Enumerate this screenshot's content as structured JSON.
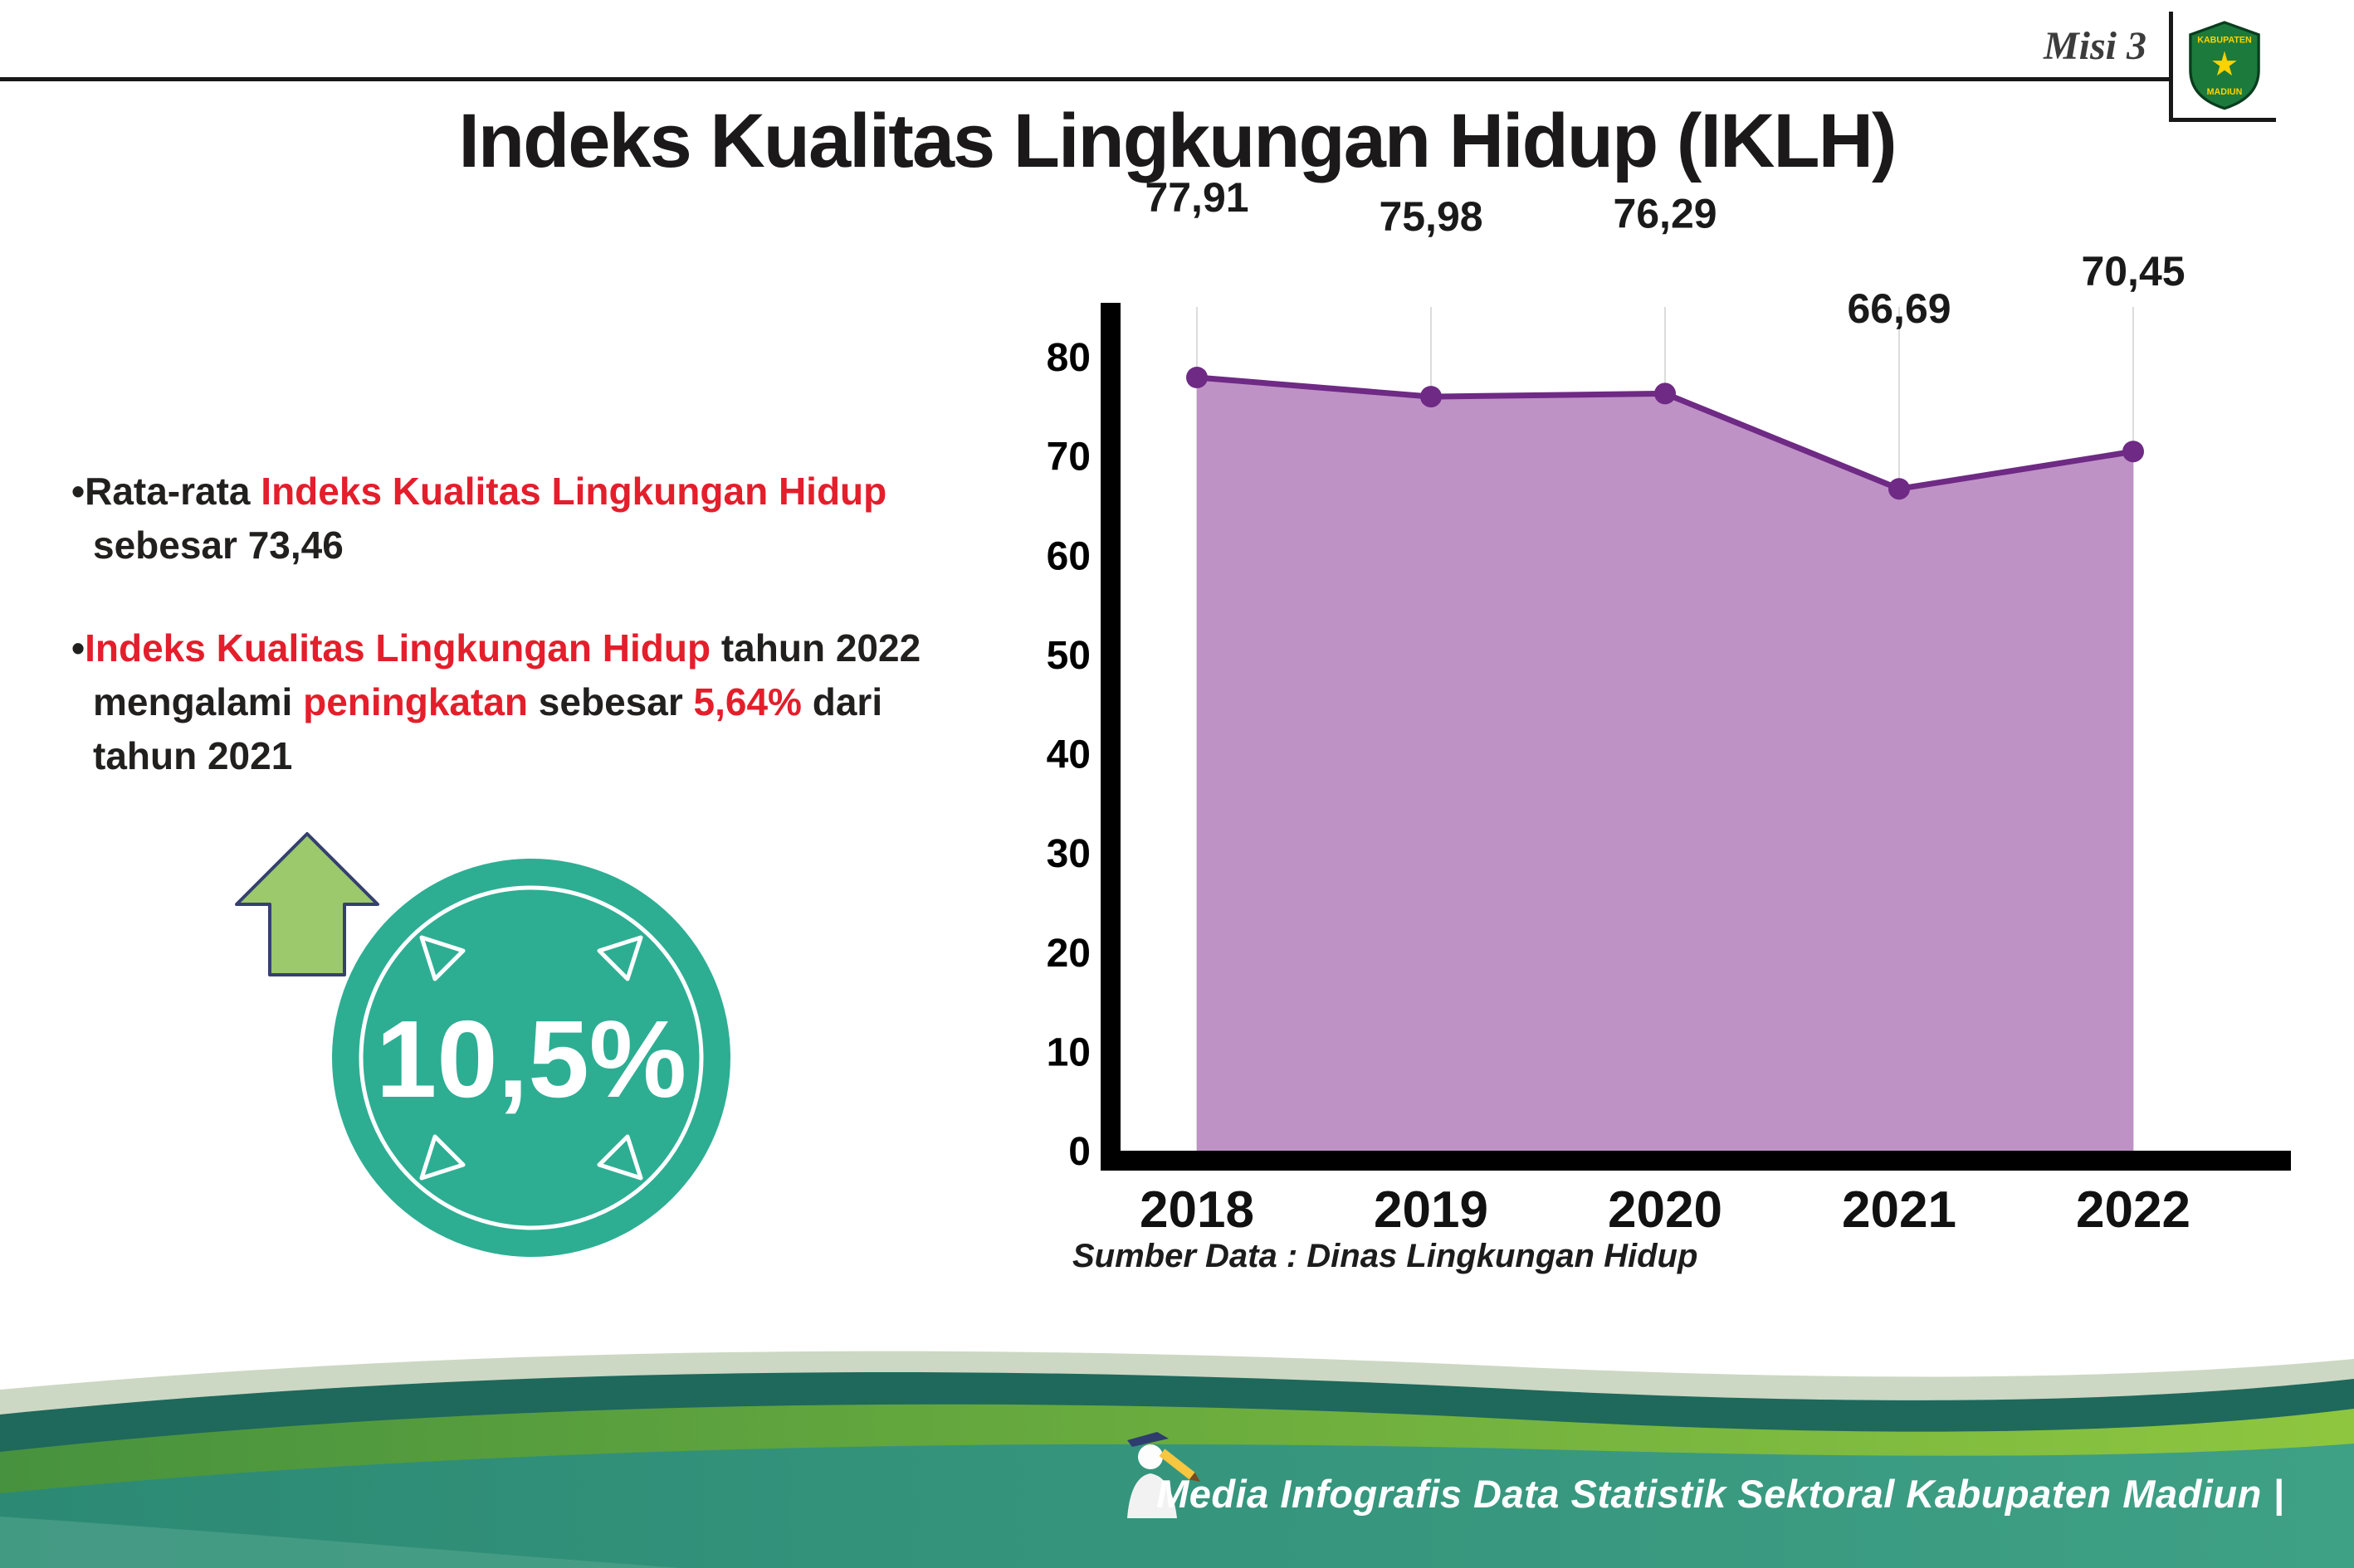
{
  "header": {
    "misi_label": "Misi 3",
    "title": "Indeks Kualitas Lingkungan Hidup (IKLH)"
  },
  "logo": {
    "top_text": "KABUPATEN",
    "bottom_text": "MADIUN"
  },
  "bullets": [
    {
      "segments": [
        {
          "t": "•Rata-rata ",
          "c": "dark"
        },
        {
          "t": "Indeks Kualitas Lingkungan Hidup",
          "c": "red"
        },
        {
          "t": " sebesar 73,46",
          "c": "dark"
        }
      ]
    },
    {
      "segments": [
        {
          "t": "•",
          "c": "dark"
        },
        {
          "t": "Indeks Kualitas Lingkungan Hidup",
          "c": "red"
        },
        {
          "t": " tahun 2022 mengalami ",
          "c": "dark"
        },
        {
          "t": "peningkatan",
          "c": "red"
        },
        {
          "t": " sebesar ",
          "c": "dark"
        },
        {
          "t": "5,64%",
          "c": "red"
        },
        {
          "t": " dari tahun 2021",
          "c": "dark"
        }
      ]
    }
  ],
  "badge": {
    "value": "10,5%",
    "direction": "up"
  },
  "chart_data": {
    "type": "area",
    "title": "",
    "categories": [
      "2018",
      "2019",
      "2020",
      "2021",
      "2022"
    ],
    "values": [
      77.91,
      75.98,
      76.29,
      66.69,
      70.45
    ],
    "value_labels": [
      "77,91",
      "75,98",
      "76,29",
      "66,69",
      "70,45"
    ],
    "ylim": [
      0,
      80
    ],
    "yticks": [
      0,
      10,
      20,
      30,
      40,
      50,
      60,
      70,
      80
    ],
    "grid": "vertical",
    "legend": "none",
    "fill_color": "#bf92c6",
    "line_color": "#6e2a84",
    "source": "Sumber Data : Dinas Lingkungan Hidup"
  },
  "footer": {
    "caption": "Media Infografis Data Statistik Sektoral Kabupaten Madiun |"
  },
  "colors": {
    "accent_red": "#e41e2b",
    "badge_teal": "#2dae93",
    "arrow_green": "#9cc96b",
    "footer_dark_teal": "#1f685c",
    "footer_green": "#8ec63f",
    "footer_band": "#2c8a74"
  }
}
